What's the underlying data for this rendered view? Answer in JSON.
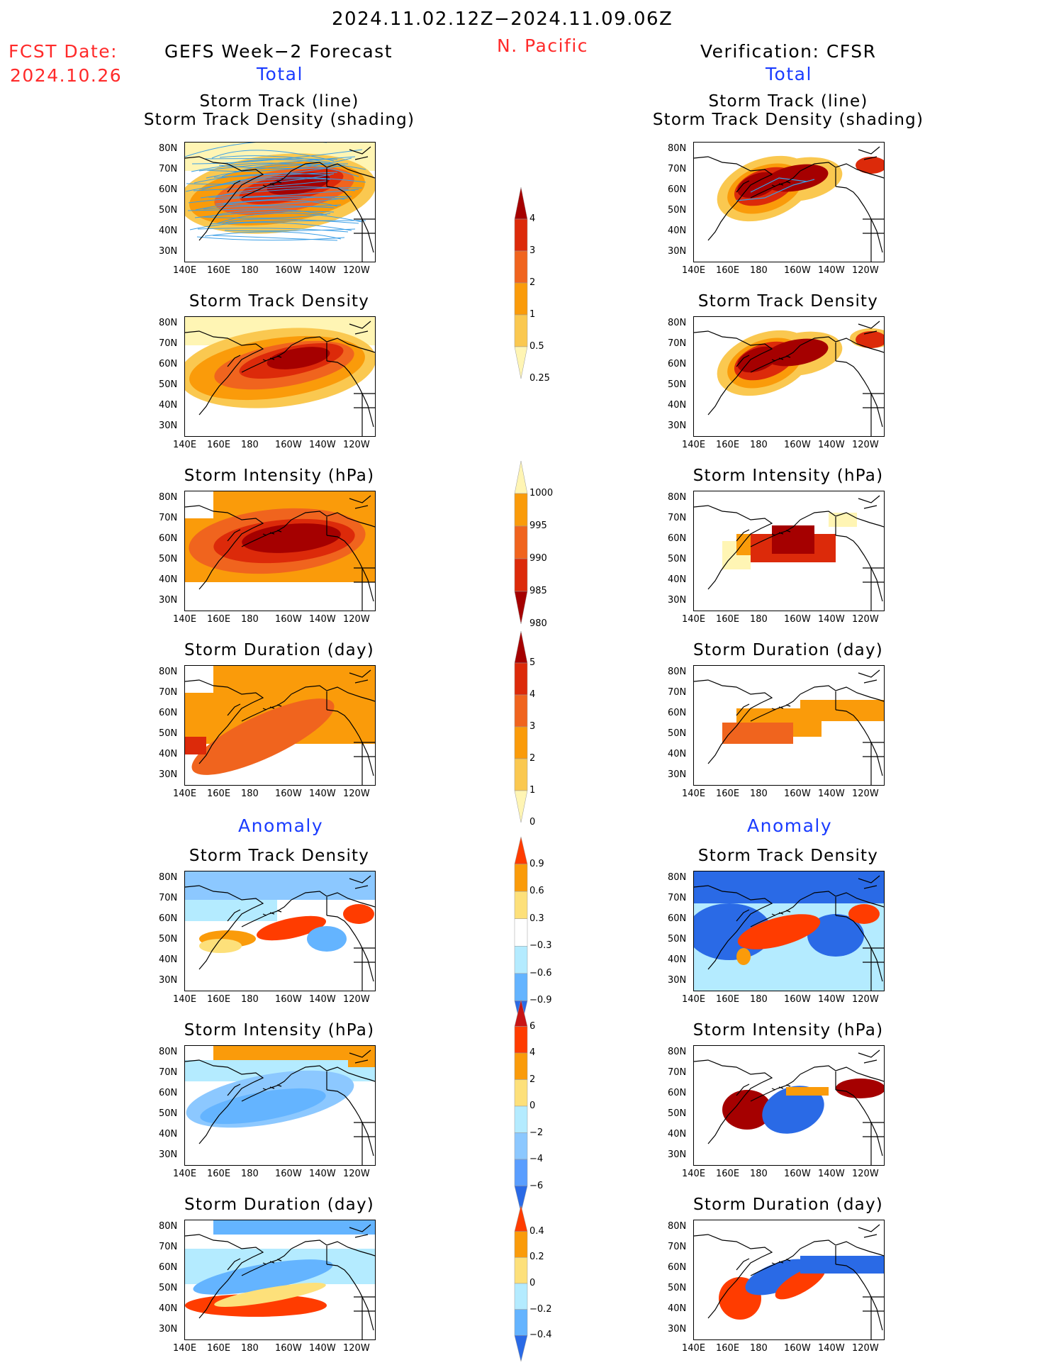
{
  "header": {
    "date_range": "2024.11.02.12Z−2024.11.09.06Z",
    "fcst_label": "FCST Date:",
    "fcst_date": "2024.10.26",
    "left_title": "GEFS Week−2 Forecast",
    "region": "N. Pacific",
    "right_title": "Verification: CFSR",
    "total_left": "Total",
    "total_right": "Total",
    "anomaly_left": "Anomaly",
    "anomaly_right": "Anomaly"
  },
  "axes": {
    "y_ticks": [
      "80N",
      "70N",
      "60N",
      "50N",
      "40N",
      "30N"
    ],
    "x_ticks": [
      "140E",
      "160E",
      "180",
      "160W",
      "140W",
      "120W"
    ]
  },
  "panels": {
    "left": [
      {
        "title1": "Storm Track (line)",
        "title2": "Storm Track Density (shading)"
      },
      {
        "title1": "Storm Track Density"
      },
      {
        "title1": "Storm Intensity (hPa)"
      },
      {
        "title1": "Storm Duration (day)"
      },
      {
        "title1": "Storm Track Density"
      },
      {
        "title1": "Storm Intensity (hPa)"
      },
      {
        "title1": "Storm Duration (day)"
      }
    ],
    "right": [
      {
        "title1": "Storm Track (line)",
        "title2": "Storm Track Density (shading)"
      },
      {
        "title1": "Storm Track Density"
      },
      {
        "title1": "Storm Intensity (hPa)"
      },
      {
        "title1": "Storm Duration (day)"
      },
      {
        "title1": "Storm Track Density"
      },
      {
        "title1": "Storm Intensity (hPa)"
      },
      {
        "title1": "Storm Duration (day)"
      }
    ]
  },
  "colorbars": [
    {
      "labels": [
        "4",
        "3",
        "2",
        "1",
        "0.5",
        "0.25"
      ],
      "colors": [
        "#a50000",
        "#dc2a0a",
        "#f0641e",
        "#fa9b0a",
        "#fac850",
        "#fff5b4"
      ]
    },
    {
      "labels": [
        "1000",
        "995",
        "990",
        "985",
        "980"
      ],
      "colors": [
        "#fff5b4",
        "#fa9b0a",
        "#f0641e",
        "#dc2a0a",
        "#a50000"
      ]
    },
    {
      "labels": [
        "5",
        "4",
        "3",
        "2",
        "1",
        "0"
      ],
      "colors": [
        "#a50000",
        "#dc2a0a",
        "#f0641e",
        "#fa9b0a",
        "#fac850",
        "#fff5b4"
      ]
    },
    {
      "labels": [
        "0.9",
        "0.6",
        "0.3",
        "−0.3",
        "−0.6",
        "−0.9"
      ],
      "colors": [
        "#ff3c00",
        "#fa9b0a",
        "#fde07a",
        "#ffffff",
        "#b4ebff",
        "#64b4ff",
        "#2a6ae6"
      ]
    },
    {
      "labels": [
        "6",
        "4",
        "2",
        "0",
        "−2",
        "−4",
        "−6"
      ],
      "colors": [
        "#c81414",
        "#ff3c00",
        "#fa9b0a",
        "#fde07a",
        "#b4ebff",
        "#8cc8ff",
        "#5a9eff",
        "#2a6ae6"
      ]
    },
    {
      "labels": [
        "0.4",
        "0.2",
        "0",
        "−0.2",
        "−0.4"
      ],
      "colors": [
        "#ff3c00",
        "#fa9b0a",
        "#fde07a",
        "#b4ebff",
        "#64b4ff",
        "#2a6ae6"
      ]
    }
  ]
}
